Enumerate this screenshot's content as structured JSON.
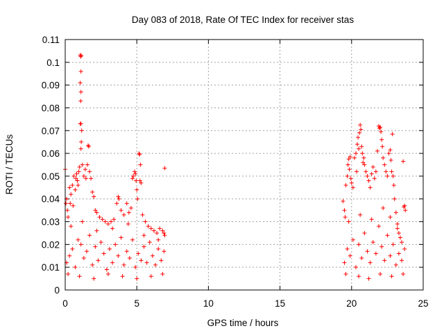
{
  "chart_data": {
    "type": "scatter",
    "title": "Day 083 of 2018, Rate Of TEC Index for receiver stas",
    "xlabel": "GPS time / hours",
    "ylabel": "ROTI / TECUs",
    "xlim": [
      0,
      25
    ],
    "ylim": [
      0,
      0.11
    ],
    "grid": true,
    "legend": "none",
    "x_ticks": [
      0,
      5,
      10,
      15,
      20,
      25
    ],
    "x_tick_labels": [
      "0",
      "5",
      "10",
      "15",
      "20",
      "25"
    ],
    "y_ticks": [
      0,
      0.01,
      0.02,
      0.03,
      0.04,
      0.05,
      0.06,
      0.07,
      0.08,
      0.09,
      0.1,
      0.11
    ],
    "y_tick_labels": [
      "0",
      "0.01",
      "0.02",
      "0.03",
      "0.04",
      "0.05",
      "0.06",
      "0.07",
      "0.08",
      "0.09",
      "0.1",
      "0.11"
    ],
    "series": [
      {
        "name": "ROTI",
        "color": "#ff0000",
        "marker": "plus",
        "points": [
          [
            0.0,
            0.053
          ],
          [
            0.05,
            0.038
          ],
          [
            0.1,
            0.04
          ],
          [
            0.15,
            0.035
          ],
          [
            0.2,
            0.032
          ],
          [
            0.3,
            0.045
          ],
          [
            0.35,
            0.038
          ],
          [
            0.4,
            0.042
          ],
          [
            0.5,
            0.046
          ],
          [
            0.55,
            0.037
          ],
          [
            0.6,
            0.05
          ],
          [
            0.7,
            0.044
          ],
          [
            0.75,
            0.049
          ],
          [
            0.8,
            0.051
          ],
          [
            0.85,
            0.048
          ],
          [
            0.9,
            0.046
          ],
          [
            0.95,
            0.052
          ],
          [
            1.0,
            0.054
          ],
          [
            1.05,
            0.1032
          ],
          [
            1.08,
            0.1025
          ],
          [
            1.12,
            0.103
          ],
          [
            1.1,
            0.096
          ],
          [
            1.05,
            0.091
          ],
          [
            1.1,
            0.087
          ],
          [
            1.08,
            0.083
          ],
          [
            1.05,
            0.073
          ],
          [
            1.1,
            0.073
          ],
          [
            1.15,
            0.07
          ],
          [
            1.12,
            0.065
          ],
          [
            1.1,
            0.062
          ],
          [
            1.2,
            0.055
          ],
          [
            1.3,
            0.05
          ],
          [
            1.4,
            0.053
          ],
          [
            1.45,
            0.049
          ],
          [
            1.55,
            0.055
          ],
          [
            1.6,
            0.0635
          ],
          [
            1.65,
            0.063
          ],
          [
            1.7,
            0.052
          ],
          [
            1.8,
            0.049
          ],
          [
            1.9,
            0.043
          ],
          [
            2.0,
            0.041
          ],
          [
            2.1,
            0.035
          ],
          [
            2.2,
            0.034
          ],
          [
            2.4,
            0.032
          ],
          [
            2.6,
            0.031
          ],
          [
            2.8,
            0.03
          ],
          [
            3.0,
            0.029
          ],
          [
            3.2,
            0.03
          ],
          [
            3.4,
            0.031
          ],
          [
            3.6,
            0.038
          ],
          [
            3.7,
            0.041
          ],
          [
            3.75,
            0.04
          ],
          [
            3.9,
            0.035
          ],
          [
            4.1,
            0.033
          ],
          [
            4.3,
            0.038
          ],
          [
            4.45,
            0.034
          ],
          [
            4.6,
            0.036
          ],
          [
            4.7,
            0.049
          ],
          [
            4.75,
            0.05
          ],
          [
            4.85,
            0.052
          ],
          [
            4.9,
            0.051
          ],
          [
            4.95,
            0.048
          ],
          [
            5.0,
            0.044
          ],
          [
            5.05,
            0.04
          ],
          [
            5.15,
            0.06
          ],
          [
            5.2,
            0.0595
          ],
          [
            5.25,
            0.055
          ],
          [
            5.22,
            0.048
          ],
          [
            5.3,
            0.047
          ],
          [
            5.4,
            0.033
          ],
          [
            5.6,
            0.03
          ],
          [
            5.8,
            0.028
          ],
          [
            6.0,
            0.027
          ],
          [
            6.2,
            0.026
          ],
          [
            6.4,
            0.025
          ],
          [
            6.6,
            0.027
          ],
          [
            6.8,
            0.026
          ],
          [
            6.95,
            0.0535
          ],
          [
            6.9,
            0.025
          ],
          [
            6.95,
            0.024
          ],
          [
            0.1,
            0.012
          ],
          [
            0.3,
            0.015
          ],
          [
            0.5,
            0.018
          ],
          [
            0.7,
            0.01
          ],
          [
            0.9,
            0.022
          ],
          [
            1.1,
            0.02
          ],
          [
            1.3,
            0.014
          ],
          [
            1.5,
            0.017
          ],
          [
            1.7,
            0.024
          ],
          [
            1.9,
            0.011
          ],
          [
            2.1,
            0.019
          ],
          [
            2.3,
            0.013
          ],
          [
            2.5,
            0.021
          ],
          [
            2.7,
            0.016
          ],
          [
            2.9,
            0.009
          ],
          [
            3.1,
            0.018
          ],
          [
            3.3,
            0.012
          ],
          [
            3.5,
            0.02
          ],
          [
            3.7,
            0.015
          ],
          [
            3.9,
            0.023
          ],
          [
            4.1,
            0.011
          ],
          [
            4.3,
            0.017
          ],
          [
            4.5,
            0.014
          ],
          [
            4.7,
            0.022
          ],
          [
            4.9,
            0.01
          ],
          [
            5.1,
            0.016
          ],
          [
            5.3,
            0.013
          ],
          [
            5.5,
            0.019
          ],
          [
            5.7,
            0.012
          ],
          [
            5.9,
            0.021
          ],
          [
            6.1,
            0.015
          ],
          [
            6.3,
            0.011
          ],
          [
            6.5,
            0.018
          ],
          [
            6.7,
            0.013
          ],
          [
            6.9,
            0.017
          ],
          [
            0.2,
            0.007
          ],
          [
            1.0,
            0.006
          ],
          [
            2.0,
            0.005
          ],
          [
            3.0,
            0.007
          ],
          [
            4.0,
            0.006
          ],
          [
            5.0,
            0.005
          ],
          [
            6.0,
            0.006
          ],
          [
            6.8,
            0.007
          ],
          [
            0.4,
            0.028
          ],
          [
            1.2,
            0.03
          ],
          [
            2.2,
            0.026
          ],
          [
            3.3,
            0.027
          ],
          [
            4.4,
            0.029
          ],
          [
            5.5,
            0.024
          ],
          [
            6.5,
            0.022
          ],
          [
            19.4,
            0.039
          ],
          [
            19.5,
            0.035
          ],
          [
            19.55,
            0.032
          ],
          [
            19.6,
            0.046
          ],
          [
            19.7,
            0.05
          ],
          [
            19.75,
            0.055
          ],
          [
            19.8,
            0.0575
          ],
          [
            19.9,
            0.0585
          ],
          [
            19.85,
            0.053
          ],
          [
            19.95,
            0.049
          ],
          [
            20.0,
            0.047
          ],
          [
            20.1,
            0.045
          ],
          [
            20.2,
            0.058
          ],
          [
            20.3,
            0.06
          ],
          [
            20.35,
            0.052
          ],
          [
            20.4,
            0.064
          ],
          [
            20.45,
            0.067
          ],
          [
            20.5,
            0.062
          ],
          [
            20.55,
            0.069
          ],
          [
            20.6,
            0.0725
          ],
          [
            20.65,
            0.0705
          ],
          [
            20.7,
            0.063
          ],
          [
            20.75,
            0.06
          ],
          [
            20.8,
            0.056
          ],
          [
            20.85,
            0.058
          ],
          [
            20.9,
            0.055
          ],
          [
            21.0,
            0.052
          ],
          [
            21.1,
            0.05
          ],
          [
            21.2,
            0.048
          ],
          [
            21.3,
            0.045
          ],
          [
            21.4,
            0.051
          ],
          [
            21.5,
            0.054
          ],
          [
            21.6,
            0.049
          ],
          [
            21.7,
            0.052
          ],
          [
            21.8,
            0.061
          ],
          [
            21.9,
            0.072
          ],
          [
            21.95,
            0.071
          ],
          [
            22.0,
            0.0715
          ],
          [
            22.05,
            0.0695
          ],
          [
            22.1,
            0.066
          ],
          [
            22.15,
            0.063
          ],
          [
            22.2,
            0.058
          ],
          [
            22.3,
            0.055
          ],
          [
            22.4,
            0.052
          ],
          [
            22.5,
            0.05
          ],
          [
            22.6,
            0.06
          ],
          [
            22.7,
            0.0615
          ],
          [
            22.75,
            0.057
          ],
          [
            22.8,
            0.052
          ],
          [
            22.85,
            0.0685
          ],
          [
            22.9,
            0.05
          ],
          [
            22.95,
            0.046
          ],
          [
            23.0,
            0.04
          ],
          [
            23.1,
            0.034
          ],
          [
            23.2,
            0.029
          ],
          [
            23.3,
            0.025
          ],
          [
            23.4,
            0.023
          ],
          [
            23.5,
            0.021
          ],
          [
            23.6,
            0.0565
          ],
          [
            23.65,
            0.0365
          ],
          [
            23.7,
            0.037
          ],
          [
            23.75,
            0.035
          ],
          [
            19.5,
            0.012
          ],
          [
            19.7,
            0.018
          ],
          [
            19.9,
            0.015
          ],
          [
            20.1,
            0.022
          ],
          [
            20.3,
            0.01
          ],
          [
            20.5,
            0.02
          ],
          [
            20.7,
            0.014
          ],
          [
            20.9,
            0.025
          ],
          [
            21.1,
            0.017
          ],
          [
            21.3,
            0.012
          ],
          [
            21.5,
            0.021
          ],
          [
            21.7,
            0.016
          ],
          [
            21.9,
            0.028
          ],
          [
            22.1,
            0.019
          ],
          [
            22.3,
            0.013
          ],
          [
            22.5,
            0.024
          ],
          [
            22.7,
            0.015
          ],
          [
            22.9,
            0.02
          ],
          [
            23.1,
            0.011
          ],
          [
            23.3,
            0.016
          ],
          [
            23.5,
            0.013
          ],
          [
            23.7,
            0.018
          ],
          [
            19.6,
            0.007
          ],
          [
            20.5,
            0.006
          ],
          [
            21.2,
            0.005
          ],
          [
            22.0,
            0.007
          ],
          [
            22.8,
            0.006
          ],
          [
            23.6,
            0.007
          ],
          [
            19.8,
            0.03
          ],
          [
            20.6,
            0.033
          ],
          [
            21.4,
            0.031
          ],
          [
            22.2,
            0.036
          ],
          [
            22.7,
            0.032
          ],
          [
            23.2,
            0.027
          ]
        ]
      }
    ]
  }
}
